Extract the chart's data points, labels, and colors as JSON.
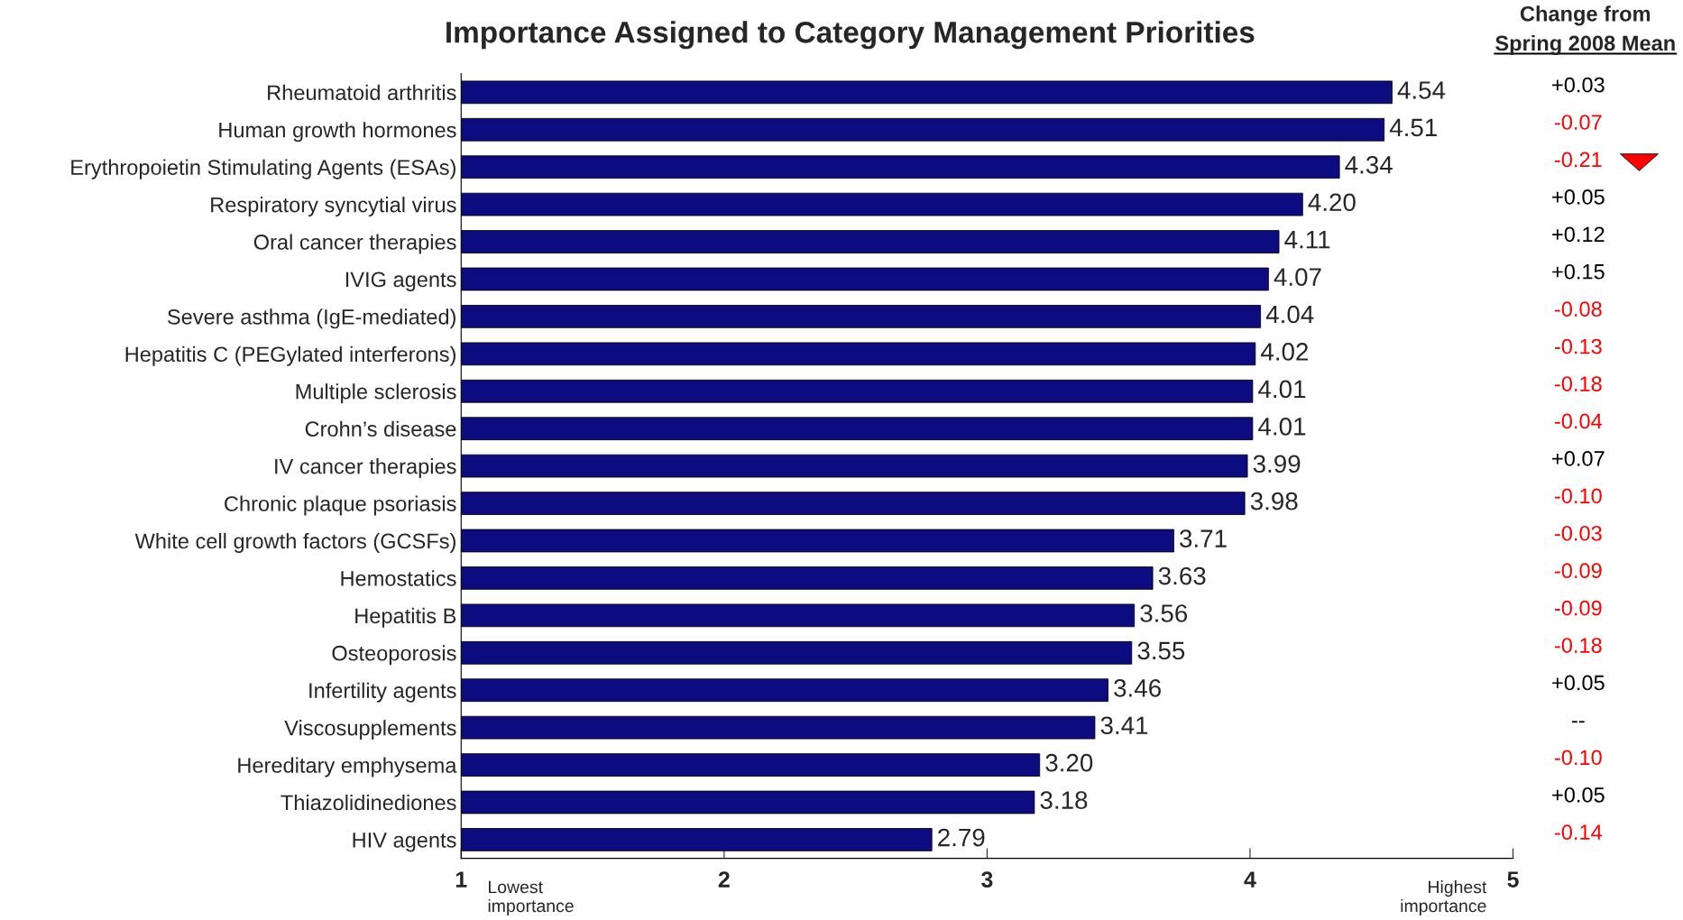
{
  "chart_data": {
    "type": "bar",
    "orientation": "horizontal",
    "title": "Importance Assigned to Category Management Priorities",
    "categories": [
      "Rheumatoid arthritis",
      "Human growth hormones",
      "Erythropoietin Stimulating Agents (ESAs)",
      "Respiratory syncytial virus",
      "Oral cancer therapies",
      "IVIG agents",
      "Severe asthma (IgE-mediated)",
      "Hepatitis C (PEGylated interferons)",
      "Multiple sclerosis",
      "Crohn’s disease",
      "IV cancer therapies",
      "Chronic plaque psoriasis",
      "White cell growth factors (GCSFs)",
      "Hemostatics",
      "Hepatitis B",
      "Osteoporosis",
      "Infertility agents",
      "Viscosupplements",
      "Hereditary emphysema",
      "Thiazolidinediones",
      "HIV agents"
    ],
    "values": [
      4.54,
      4.51,
      4.34,
      4.2,
      4.11,
      4.07,
      4.04,
      4.02,
      4.01,
      4.01,
      3.99,
      3.98,
      3.71,
      3.63,
      3.56,
      3.55,
      3.46,
      3.41,
      3.2,
      3.18,
      2.79
    ],
    "value_labels": [
      "4.54",
      "4.51",
      "4.34",
      "4.20",
      "4.11",
      "4.07",
      "4.04",
      "4.02",
      "4.01",
      "4.01",
      "3.99",
      "3.98",
      "3.71",
      "3.63",
      "3.56",
      "3.55",
      "3.46",
      "3.41",
      "3.20",
      "3.18",
      "2.79"
    ],
    "color": "#0c0c80",
    "xlim": [
      1,
      5
    ],
    "xticks": [
      1,
      2,
      3,
      4,
      5
    ],
    "grid": false,
    "legend": false,
    "annotations": [
      "Change from",
      "Spring 2008 Mean",
      "Lowest\nimportance",
      "Highest\nimportance",
      "+0.03",
      "-0.07",
      "-0.21",
      "+0.05",
      "+0.12",
      "+0.15",
      "-0.08",
      "-0.13",
      "-0.18",
      "-0.04",
      "+0.07",
      "-0.10",
      "-0.03",
      "-0.09",
      "-0.09",
      "-0.18",
      "+0.05",
      "--",
      "-0.10",
      "+0.05",
      "-0.14"
    ]
  }
}
